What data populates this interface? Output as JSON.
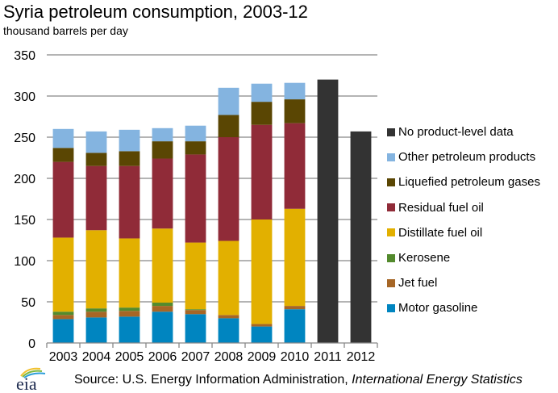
{
  "chart_data": {
    "type": "bar",
    "stacked": true,
    "title": "Syria petroleum consumption, 2003-12",
    "subtitle": "thousand barrels per day",
    "xlabel": "",
    "ylabel": "thousand barrels per day",
    "ylim": [
      0,
      350
    ],
    "yticks": [
      0,
      50,
      100,
      150,
      200,
      250,
      300,
      350
    ],
    "grid": true,
    "legend_position": "right",
    "categories": [
      "2003",
      "2004",
      "2005",
      "2006",
      "2007",
      "2008",
      "2009",
      "2010",
      "2011",
      "2012"
    ],
    "series": [
      {
        "name": "Motor gasoline",
        "color": "#0085C0",
        "values": [
          29,
          31,
          32,
          38,
          35,
          30,
          20,
          41,
          0,
          0
        ]
      },
      {
        "name": "Jet fuel",
        "color": "#A66626",
        "values": [
          5,
          7,
          7,
          7,
          5,
          4,
          3,
          4,
          0,
          0
        ]
      },
      {
        "name": "Kerosene",
        "color": "#538A2D",
        "values": [
          4,
          4,
          4,
          4,
          1,
          0,
          0,
          0,
          0,
          0
        ]
      },
      {
        "name": "Distillate fuel oil",
        "color": "#E2B000",
        "values": [
          90,
          95,
          84,
          90,
          81,
          90,
          127,
          118,
          0,
          0
        ]
      },
      {
        "name": "Residual fuel oil",
        "color": "#902B38",
        "values": [
          92,
          78,
          88,
          85,
          107,
          126,
          115,
          104,
          0,
          0
        ]
      },
      {
        "name": "Liquefied petroleum gases",
        "color": "#5A4603",
        "values": [
          17,
          16,
          18,
          21,
          16,
          27,
          28,
          29,
          0,
          0
        ]
      },
      {
        "name": "Other petroleum products",
        "color": "#84B4E0",
        "values": [
          23,
          26,
          26,
          16,
          19,
          33,
          22,
          20,
          0,
          0
        ]
      },
      {
        "name": "No product-level data",
        "color": "#333333",
        "values": [
          0,
          0,
          0,
          0,
          0,
          0,
          0,
          0,
          320,
          257
        ]
      }
    ],
    "legend_order": [
      "No product-level data",
      "Other petroleum products",
      "Liquefied petroleum gases",
      "Residual fuel oil",
      "Distillate fuel oil",
      "Kerosene",
      "Jet fuel",
      "Motor gasoline"
    ]
  },
  "footer": {
    "logo_text": "eia",
    "source_prefix": "Source: U.S. Energy Information Administration, ",
    "source_italic": "International Energy Statistics"
  },
  "colors": {
    "gridline": "#888888",
    "axis": "#888888"
  }
}
